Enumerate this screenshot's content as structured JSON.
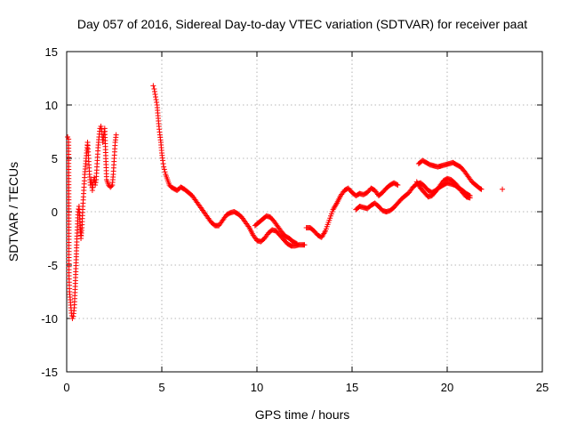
{
  "chart_data": {
    "type": "scatter",
    "title": "Day 057 of 2016, Sidereal Day-to-day VTEC variation (SDTVAR) for receiver paat",
    "xlabel": "GPS time / hours",
    "ylabel": "SDTVAR / TECUs",
    "xlim": [
      0,
      25
    ],
    "ylim": [
      -15,
      15
    ],
    "xticks": [
      0,
      5,
      10,
      15,
      20,
      25
    ],
    "yticks": [
      -15,
      -10,
      -5,
      0,
      5,
      10,
      15
    ],
    "xtick_labels": [
      "0",
      "5",
      "10",
      "15",
      "20",
      "25"
    ],
    "ytick_labels": [
      "-15",
      "-10",
      "-5",
      "0",
      "5",
      "10",
      "15"
    ],
    "grid": true,
    "marker": "+",
    "color": "#ff0000",
    "series": [
      {
        "name": "paat",
        "segments": [
          [
            [
              0.05,
              7.0
            ],
            [
              0.1,
              6.8
            ],
            [
              0.12,
              -6.0
            ],
            [
              0.15,
              -7.5
            ],
            [
              0.2,
              -8.5
            ],
            [
              0.25,
              -9.5
            ],
            [
              0.3,
              -10.0
            ],
            [
              0.35,
              -9.8
            ],
            [
              0.4,
              -9.0
            ],
            [
              0.45,
              -7.0
            ],
            [
              0.5,
              -4.5
            ],
            [
              0.55,
              -2.0
            ],
            [
              0.6,
              0.0
            ],
            [
              0.65,
              0.5
            ],
            [
              0.7,
              -1.0
            ],
            [
              0.75,
              -2.5
            ],
            [
              0.8,
              -1.5
            ],
            [
              0.85,
              0.5
            ],
            [
              0.9,
              2.0
            ],
            [
              0.95,
              3.5
            ],
            [
              1.0,
              4.5
            ],
            [
              1.05,
              5.5
            ],
            [
              1.1,
              6.5
            ],
            [
              1.15,
              5.0
            ],
            [
              1.2,
              3.5
            ],
            [
              1.25,
              2.5
            ],
            [
              1.3,
              3.0
            ],
            [
              1.35,
              2.0
            ],
            [
              1.4,
              2.8
            ],
            [
              1.45,
              3.2
            ],
            [
              1.5,
              2.5
            ],
            [
              1.55,
              3.0
            ],
            [
              1.6,
              4.5
            ],
            [
              1.65,
              6.0
            ],
            [
              1.7,
              7.0
            ],
            [
              1.75,
              7.8
            ],
            [
              1.8,
              8.0
            ],
            [
              1.85,
              7.5
            ],
            [
              1.9,
              6.5
            ],
            [
              1.95,
              7.2
            ],
            [
              2.0,
              7.8
            ],
            [
              2.1,
              3.0
            ],
            [
              2.2,
              2.5
            ],
            [
              2.3,
              2.3
            ],
            [
              2.4,
              2.5
            ],
            [
              2.45,
              3.5
            ],
            [
              2.5,
              5.0
            ],
            [
              2.55,
              6.5
            ],
            [
              2.6,
              7.2
            ]
          ],
          [
            [
              4.55,
              11.8
            ],
            [
              4.6,
              11.5
            ],
            [
              4.65,
              11.0
            ],
            [
              4.7,
              10.5
            ],
            [
              4.75,
              10.0
            ],
            [
              4.8,
              9.0
            ],
            [
              4.85,
              8.0
            ],
            [
              4.9,
              7.2
            ],
            [
              4.95,
              6.5
            ],
            [
              5.0,
              5.5
            ],
            [
              5.05,
              4.8
            ],
            [
              5.1,
              4.2
            ],
            [
              5.2,
              3.5
            ],
            [
              5.3,
              3.0
            ],
            [
              5.4,
              2.5
            ],
            [
              5.5,
              2.3
            ],
            [
              5.6,
              2.2
            ],
            [
              5.8,
              2.0
            ],
            [
              6.0,
              2.3
            ],
            [
              6.2,
              2.1
            ],
            [
              6.4,
              1.8
            ],
            [
              6.6,
              1.5
            ],
            [
              6.8,
              1.0
            ],
            [
              7.0,
              0.5
            ],
            [
              7.2,
              0.0
            ],
            [
              7.4,
              -0.5
            ],
            [
              7.6,
              -1.0
            ],
            [
              7.8,
              -1.3
            ],
            [
              8.0,
              -1.3
            ],
            [
              8.2,
              -0.8
            ],
            [
              8.4,
              -0.3
            ],
            [
              8.6,
              -0.1
            ],
            [
              8.8,
              0.0
            ],
            [
              9.0,
              -0.2
            ],
            [
              9.2,
              -0.5
            ],
            [
              9.4,
              -1.0
            ],
            [
              9.6,
              -1.5
            ],
            [
              9.8,
              -2.2
            ],
            [
              10.0,
              -2.7
            ],
            [
              10.2,
              -2.8
            ],
            [
              10.4,
              -2.5
            ],
            [
              10.6,
              -2.0
            ],
            [
              10.8,
              -1.7
            ],
            [
              11.0,
              -1.8
            ],
            [
              11.2,
              -2.2
            ],
            [
              11.4,
              -2.6
            ],
            [
              11.6,
              -3.0
            ],
            [
              11.8,
              -3.2
            ],
            [
              12.0,
              -3.2
            ],
            [
              12.2,
              -3.1
            ],
            [
              12.4,
              -3.1
            ],
            [
              12.5,
              -3.1
            ]
          ],
          [
            [
              9.9,
              -1.3
            ],
            [
              10.1,
              -1.0
            ],
            [
              10.3,
              -0.7
            ],
            [
              10.5,
              -0.4
            ],
            [
              10.7,
              -0.5
            ],
            [
              10.9,
              -0.9
            ],
            [
              11.1,
              -1.4
            ],
            [
              11.3,
              -1.9
            ],
            [
              11.5,
              -2.3
            ],
            [
              11.7,
              -2.5
            ],
            [
              11.9,
              -2.8
            ],
            [
              12.1,
              -3.0
            ]
          ],
          [
            [
              12.6,
              -1.5
            ],
            [
              12.8,
              -1.5
            ],
            [
              13.0,
              -1.8
            ],
            [
              13.2,
              -2.2
            ],
            [
              13.4,
              -2.4
            ],
            [
              13.6,
              -1.8
            ],
            [
              13.8,
              -0.8
            ],
            [
              14.0,
              0.2
            ],
            [
              14.2,
              0.8
            ],
            [
              14.4,
              1.5
            ],
            [
              14.6,
              2.0
            ],
            [
              14.8,
              2.2
            ],
            [
              15.0,
              1.8
            ],
            [
              15.2,
              1.5
            ],
            [
              15.4,
              1.7
            ],
            [
              15.6,
              1.6
            ],
            [
              15.8,
              1.8
            ],
            [
              16.0,
              2.2
            ],
            [
              16.2,
              2.0
            ],
            [
              16.4,
              1.5
            ],
            [
              16.6,
              1.8
            ],
            [
              16.8,
              2.2
            ],
            [
              17.0,
              2.5
            ],
            [
              17.2,
              2.7
            ],
            [
              17.4,
              2.5
            ]
          ],
          [
            [
              15.2,
              0.2
            ],
            [
              15.4,
              0.5
            ],
            [
              15.6,
              0.4
            ],
            [
              15.8,
              0.3
            ],
            [
              16.0,
              0.6
            ],
            [
              16.2,
              0.8
            ],
            [
              16.4,
              0.5
            ],
            [
              16.6,
              0.1
            ],
            [
              16.8,
              0.0
            ],
            [
              17.0,
              0.1
            ],
            [
              17.2,
              0.4
            ],
            [
              17.4,
              0.8
            ],
            [
              17.6,
              1.2
            ],
            [
              17.8,
              1.5
            ],
            [
              18.0,
              1.8
            ],
            [
              18.2,
              2.3
            ],
            [
              18.4,
              2.6
            ],
            [
              18.6,
              2.7
            ],
            [
              18.8,
              2.4
            ],
            [
              19.0,
              2.0
            ],
            [
              19.2,
              1.8
            ],
            [
              19.4,
              2.0
            ],
            [
              19.6,
              2.3
            ],
            [
              19.8,
              2.5
            ],
            [
              20.0,
              2.7
            ],
            [
              20.2,
              2.6
            ],
            [
              20.4,
              2.5
            ],
            [
              20.6,
              2.2
            ],
            [
              20.8,
              2.0
            ],
            [
              21.0,
              1.7
            ],
            [
              21.2,
              1.5
            ]
          ],
          [
            [
              18.5,
              4.5
            ],
            [
              18.7,
              4.8
            ],
            [
              18.9,
              4.6
            ],
            [
              19.1,
              4.4
            ],
            [
              19.3,
              4.3
            ],
            [
              19.5,
              4.2
            ],
            [
              19.7,
              4.3
            ],
            [
              19.9,
              4.4
            ],
            [
              20.1,
              4.5
            ],
            [
              20.3,
              4.6
            ],
            [
              20.5,
              4.4
            ],
            [
              20.7,
              4.2
            ],
            [
              20.9,
              3.8
            ],
            [
              21.1,
              3.3
            ],
            [
              21.3,
              2.8
            ],
            [
              21.5,
              2.5
            ],
            [
              21.7,
              2.2
            ],
            [
              21.8,
              2.1
            ]
          ],
          [
            [
              18.4,
              2.8
            ],
            [
              18.6,
              2.2
            ],
            [
              18.8,
              1.8
            ],
            [
              19.0,
              1.4
            ],
            [
              19.2,
              1.5
            ],
            [
              19.4,
              1.9
            ],
            [
              19.6,
              2.4
            ],
            [
              19.8,
              2.9
            ],
            [
              20.0,
              3.1
            ],
            [
              20.2,
              3.0
            ],
            [
              20.4,
              2.7
            ],
            [
              20.6,
              2.3
            ],
            [
              20.8,
              1.8
            ],
            [
              21.0,
              1.4
            ],
            [
              21.2,
              1.3
            ]
          ],
          [
            [
              22.9,
              2.1
            ]
          ]
        ]
      }
    ]
  }
}
